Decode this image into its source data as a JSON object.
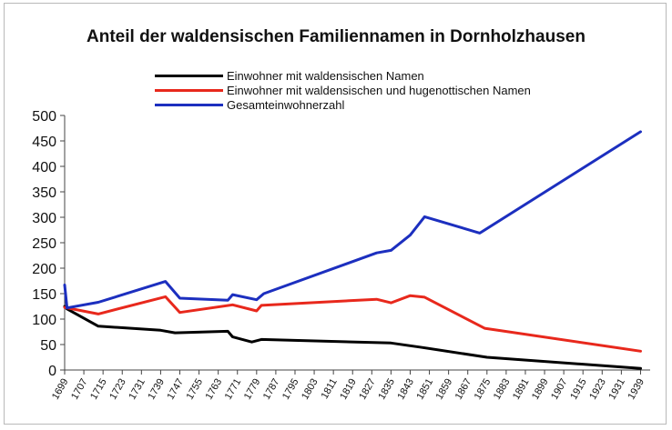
{
  "chart_data": {
    "type": "line",
    "title": "Anteil der waldensischen Familiennamen in Dornholzhausen",
    "xlabel": "",
    "ylabel": "",
    "ylim": [
      0,
      500
    ],
    "yticks": [
      "0",
      "50",
      "100",
      "150",
      "200",
      "250",
      "300",
      "350",
      "400",
      "450",
      "500"
    ],
    "xlim": [
      1699,
      1943
    ],
    "xticks": [
      "1699",
      "1707",
      "1715",
      "1723",
      "1731",
      "1739",
      "1747",
      "1755",
      "1763",
      "1771",
      "1779",
      "1787",
      "1795",
      "1803",
      "1811",
      "1819",
      "1827",
      "1835",
      "1843",
      "1851",
      "1859",
      "1867",
      "1875",
      "1883",
      "1891",
      "1899",
      "1907",
      "1915",
      "1923",
      "1931",
      "1939"
    ],
    "grid": false,
    "legend_position": "top-left",
    "series": [
      {
        "name": "Einwohner mit waldensischen Namen",
        "color": "#000000",
        "points": [
          [
            1699,
            125
          ],
          [
            1700,
            120
          ],
          [
            1713,
            86
          ],
          [
            1739,
            78
          ],
          [
            1745,
            73
          ],
          [
            1767,
            76
          ],
          [
            1769,
            65
          ],
          [
            1777,
            55
          ],
          [
            1781,
            60
          ],
          [
            1835,
            53
          ],
          [
            1847,
            45
          ],
          [
            1875,
            25
          ],
          [
            1939,
            3
          ]
        ]
      },
      {
        "name": "Einwohner mit waldensischen und hugenottischen Namen",
        "color": "#e8281c",
        "points": [
          [
            1699,
            123
          ],
          [
            1713,
            110
          ],
          [
            1741,
            144
          ],
          [
            1747,
            113
          ],
          [
            1769,
            128
          ],
          [
            1779,
            116
          ],
          [
            1781,
            127
          ],
          [
            1829,
            139
          ],
          [
            1835,
            132
          ],
          [
            1843,
            146
          ],
          [
            1849,
            143
          ],
          [
            1874,
            82
          ],
          [
            1939,
            37
          ]
        ]
      },
      {
        "name": "Gesamteinwohnerzahl",
        "color": "#1c2fbf",
        "points": [
          [
            1699,
            167
          ],
          [
            1700,
            122
          ],
          [
            1713,
            133
          ],
          [
            1741,
            174
          ],
          [
            1747,
            141
          ],
          [
            1767,
            137
          ],
          [
            1769,
            148
          ],
          [
            1779,
            138
          ],
          [
            1782,
            150
          ],
          [
            1829,
            230
          ],
          [
            1835,
            235
          ],
          [
            1843,
            265
          ],
          [
            1849,
            301
          ],
          [
            1872,
            269
          ],
          [
            1939,
            468
          ]
        ]
      }
    ]
  }
}
